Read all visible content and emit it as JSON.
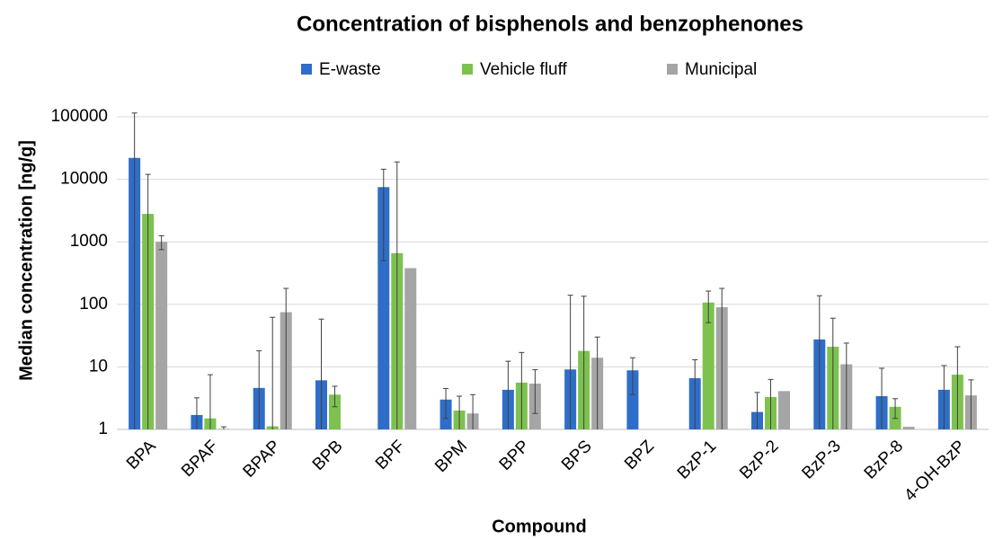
{
  "chart_data": {
    "type": "bar",
    "title": "Concentration of bisphenols and benzophenones",
    "x_label": "Compound",
    "y_label": "Median  concentration [ng/g]",
    "log_scale": true,
    "grid": true,
    "legend": "top",
    "ylim": [
      1,
      100000
    ],
    "yticks": [
      1,
      10,
      100,
      1000,
      10000,
      100000
    ],
    "categories": [
      "BPA",
      "BPAF",
      "BPAP",
      "BPB",
      "BPF",
      "BPM",
      "BPP",
      "BPS",
      "BPZ",
      "BzP-1",
      "BzP-2",
      "BzP-3",
      "BzP-8",
      "4-OH-BzP"
    ],
    "series": [
      {
        "name": "E-waste",
        "color": "#2f6ec8",
        "values": [
          22000,
          1.7,
          4.6,
          6.1,
          7500,
          3.0,
          4.3,
          9.1,
          8.8,
          6.6,
          1.9,
          27.5,
          3.4,
          4.3
        ],
        "errors": [
          93000,
          1.5,
          13.5,
          52,
          7000,
          1.5,
          8,
          131,
          5.2,
          6.4,
          2,
          110,
          6.1,
          6.2
        ]
      },
      {
        "name": "Vehicle fluff",
        "color": "#7dc24e",
        "values": [
          2800,
          1.5,
          1.12,
          3.6,
          660,
          2.0,
          5.6,
          18,
          null,
          107,
          3.3,
          21,
          2.3,
          7.5
        ],
        "errors": [
          9200,
          6,
          61,
          1.3,
          18300,
          1.4,
          11.4,
          117,
          null,
          56,
          3,
          39,
          0.8,
          13.5
        ]
      },
      {
        "name": "Municipal",
        "color": "#a5a5a5",
        "values": [
          1000,
          1.02,
          75,
          null,
          380,
          1.8,
          5.4,
          14,
          null,
          90,
          4.1,
          11,
          1.1,
          3.5
        ],
        "errors": [
          250,
          0.08,
          105,
          null,
          null,
          1.8,
          3.6,
          16,
          null,
          90,
          null,
          13,
          null,
          2.7
        ]
      }
    ]
  }
}
